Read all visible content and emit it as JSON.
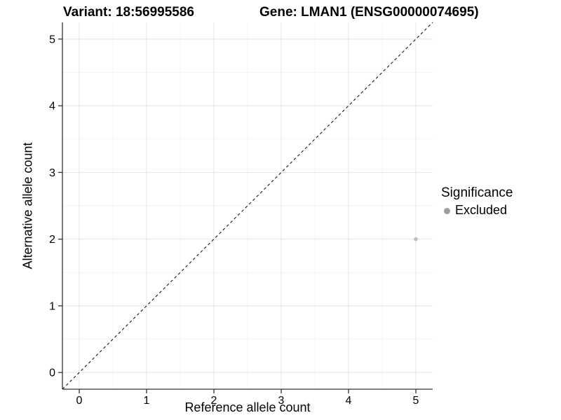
{
  "chart_data": {
    "type": "scatter",
    "title_left": "Variant: 18:56995586",
    "title_right": "Gene: LMAN1 (ENSG00000074695)",
    "xlabel": "Reference allele count",
    "ylabel": "Alternative allele count",
    "xlim": [
      -0.25,
      5.25
    ],
    "ylim": [
      -0.25,
      5.25
    ],
    "xticks": [
      0,
      1,
      2,
      3,
      4,
      5
    ],
    "yticks": [
      0,
      1,
      2,
      3,
      4,
      5
    ],
    "minor_gridlines_x": [
      0.5,
      1.5,
      2.5,
      3.5,
      4.5
    ],
    "minor_gridlines_y": [
      0.5,
      1.5,
      2.5,
      3.5,
      4.5
    ],
    "grid": true,
    "points": [
      {
        "x": 5,
        "y": 2,
        "series": "Excluded"
      }
    ],
    "reference_line": {
      "slope": 1,
      "intercept": 0,
      "style": "dashed"
    },
    "legend": {
      "title": "Significance",
      "position": "right",
      "items": [
        {
          "label": "Excluded",
          "color": "#9e9e9e"
        }
      ]
    },
    "colors": {
      "point": "#bfbfbf",
      "legend_key": "#9e9e9e",
      "axis": "#333333",
      "grid_major": "#e4e4e4",
      "grid_minor": "#f1f1f1",
      "reference_line": "#1a1a1a",
      "text": "#000000",
      "background": "#ffffff"
    }
  }
}
